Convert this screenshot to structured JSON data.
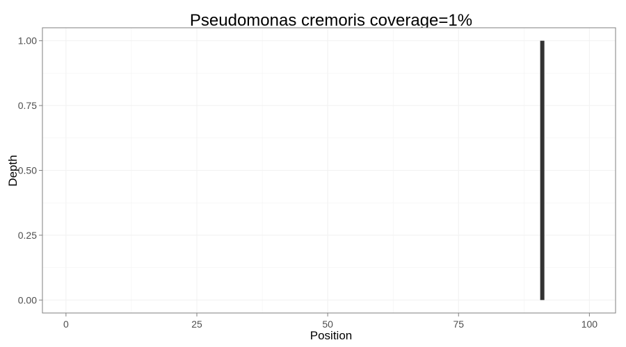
{
  "chart_data": {
    "type": "bar",
    "title": "Pseudomonas cremoris coverage=1%",
    "xlabel": "Position",
    "ylabel": "Depth",
    "xlim": [
      -4.5,
      105
    ],
    "ylim": [
      -0.05,
      1.05
    ],
    "x_ticks": [
      0,
      25,
      50,
      75,
      100
    ],
    "x_tick_labels": [
      "0",
      "25",
      "50",
      "75",
      "100"
    ],
    "y_ticks": [
      0,
      0.25,
      0.5,
      0.75,
      1
    ],
    "y_tick_labels": [
      "0.00",
      "0.25",
      "0.50",
      "0.75",
      "1.00"
    ],
    "grid": true,
    "points": [
      {
        "x": 91,
        "y": 1
      }
    ],
    "colors": {
      "bar": "#333333",
      "grid": "#f2f2f2",
      "border": "#7f7f7f"
    }
  }
}
